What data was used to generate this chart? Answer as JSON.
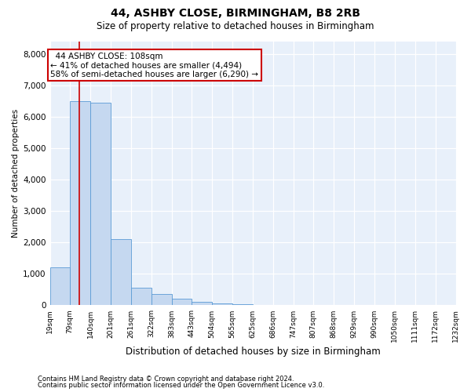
{
  "title": "44, ASHBY CLOSE, BIRMINGHAM, B8 2RB",
  "subtitle": "Size of property relative to detached houses in Birmingham",
  "xlabel": "Distribution of detached houses by size in Birmingham",
  "ylabel": "Number of detached properties",
  "footnote1": "Contains HM Land Registry data © Crown copyright and database right 2024.",
  "footnote2": "Contains public sector information licensed under the Open Government Licence v3.0.",
  "annotation_title": "44 ASHBY CLOSE: 108sqm",
  "annotation_line1": "← 41% of detached houses are smaller (4,494)",
  "annotation_line2": "58% of semi-detached houses are larger (6,290) →",
  "property_size": 108,
  "bar_color": "#c5d8f0",
  "bar_edge_color": "#5b9bd5",
  "vline_color": "#cc0000",
  "annotation_box_color": "#ffffff",
  "annotation_box_edge": "#cc0000",
  "background_color": "#e8f0fa",
  "bin_edges": [
    19,
    79,
    140,
    201,
    261,
    322,
    383,
    443,
    504,
    565,
    625,
    686,
    747,
    807,
    868,
    929,
    990,
    1050,
    1111,
    1172,
    1232
  ],
  "bin_labels": [
    "19sqm",
    "79sqm",
    "140sqm",
    "201sqm",
    "261sqm",
    "322sqm",
    "383sqm",
    "443sqm",
    "504sqm",
    "565sqm",
    "625sqm",
    "686sqm",
    "747sqm",
    "807sqm",
    "868sqm",
    "929sqm",
    "990sqm",
    "1050sqm",
    "1111sqm",
    "1172sqm",
    "1232sqm"
  ],
  "bar_heights": [
    1200,
    6500,
    6450,
    2100,
    550,
    350,
    200,
    110,
    65,
    35,
    20,
    0,
    0,
    0,
    0,
    0,
    0,
    0,
    0,
    0
  ],
  "ylim": [
    0,
    8400
  ],
  "yticks": [
    0,
    1000,
    2000,
    3000,
    4000,
    5000,
    6000,
    7000,
    8000
  ],
  "title_fontsize": 10,
  "subtitle_fontsize": 8.5,
  "ylabel_fontsize": 7.5,
  "xlabel_fontsize": 8.5,
  "tick_fontsize": 6.5,
  "ytick_fontsize": 7.5,
  "footnote_fontsize": 6,
  "annotation_fontsize": 7.5
}
